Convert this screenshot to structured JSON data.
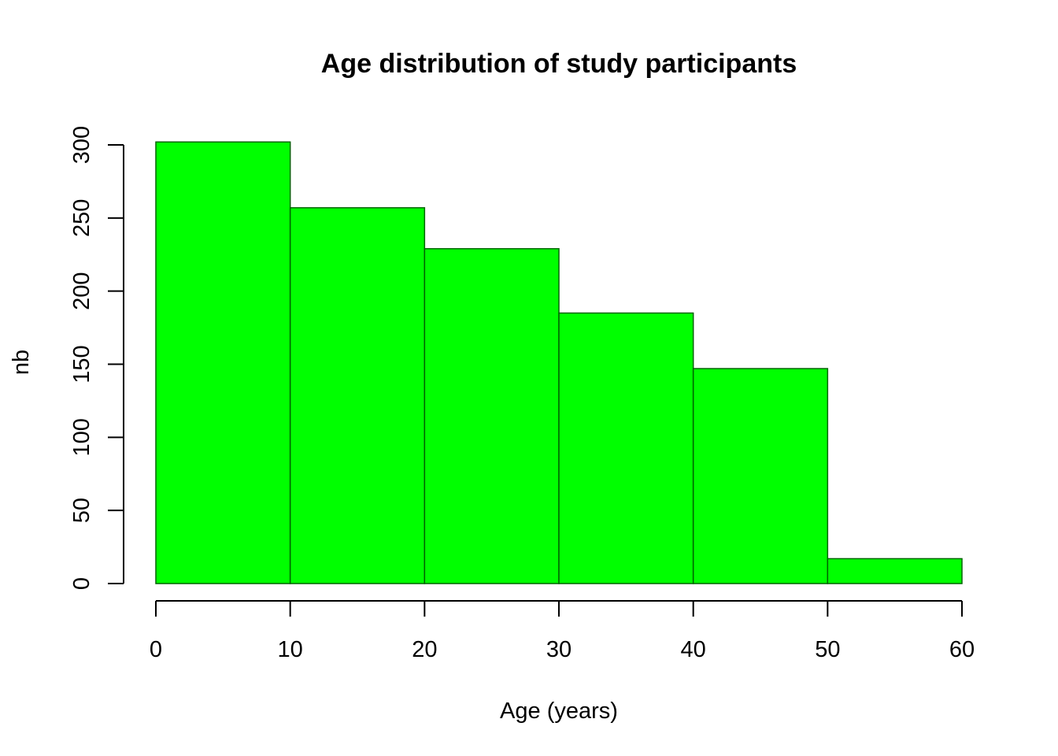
{
  "chart_data": {
    "type": "bar",
    "histogram": true,
    "title": "Age distribution of study participants",
    "xlabel": "Age (years)",
    "ylabel": "nb",
    "bins": [
      {
        "start": 0,
        "end": 10,
        "count": 302
      },
      {
        "start": 10,
        "end": 20,
        "count": 257
      },
      {
        "start": 20,
        "end": 30,
        "count": 229
      },
      {
        "start": 30,
        "end": 40,
        "count": 185
      },
      {
        "start": 40,
        "end": 50,
        "count": 147
      },
      {
        "start": 50,
        "end": 60,
        "count": 17
      }
    ],
    "xlim": [
      0,
      60
    ],
    "ylim": [
      0,
      300
    ],
    "x_ticks": [
      "0",
      "10",
      "20",
      "30",
      "40",
      "50",
      "60"
    ],
    "y_ticks": [
      "0",
      "50",
      "100",
      "150",
      "200",
      "250",
      "300"
    ],
    "grid": false,
    "colors": {
      "bar_fill": "#00ff00",
      "bar_border": "#006400",
      "axes": "#000000"
    }
  }
}
